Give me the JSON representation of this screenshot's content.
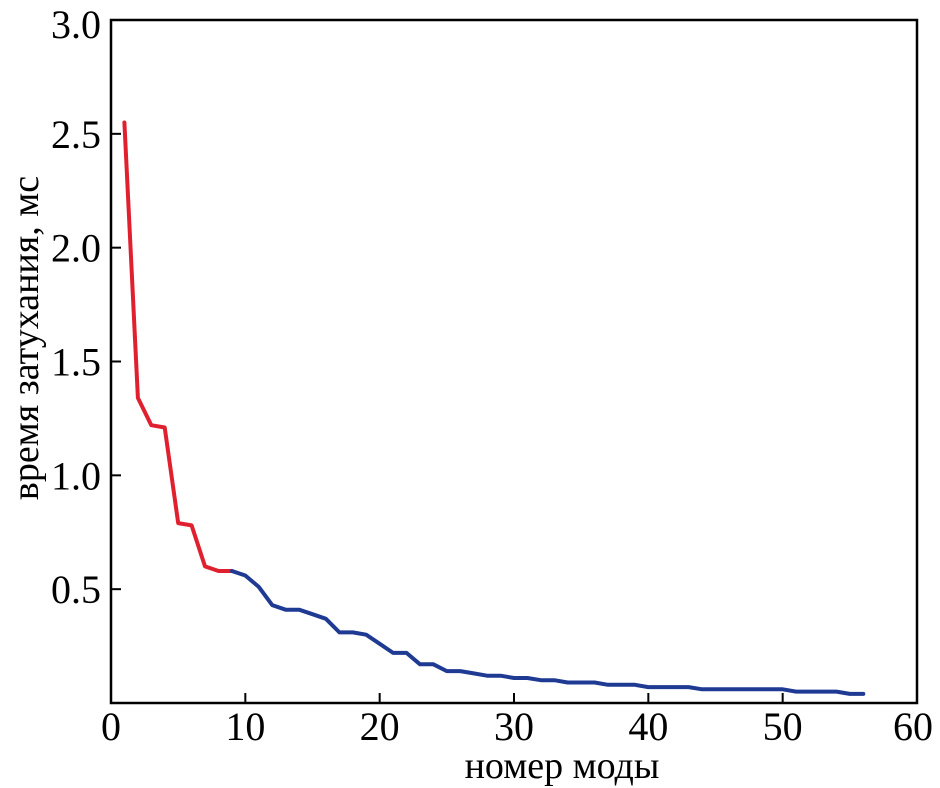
{
  "chart_data": {
    "type": "line",
    "xlabel": "номер моды",
    "ylabel": "время затухания, мс",
    "xlim": [
      0,
      60
    ],
    "ylim": [
      0,
      3.0
    ],
    "xticks": [
      0,
      10,
      20,
      30,
      40,
      50,
      60
    ],
    "yticks": [
      0.5,
      1.0,
      1.5,
      2.0,
      2.5,
      3.0
    ],
    "xtick_labels": [
      "0",
      "10",
      "20",
      "30",
      "40",
      "50",
      "60"
    ],
    "ytick_labels": [
      "0.5",
      "1.0",
      "1.5",
      "2.0",
      "2.5",
      "3.0"
    ],
    "grid": false,
    "series": [
      {
        "color": "#e0202e",
        "x": [
          1,
          2,
          3,
          4,
          5,
          6,
          7,
          8,
          9
        ],
        "y": [
          2.55,
          1.34,
          1.22,
          1.21,
          0.79,
          0.78,
          0.6,
          0.58,
          0.58
        ]
      },
      {
        "color": "#1f3a93",
        "x": [
          9,
          10,
          11,
          12,
          13,
          14,
          15,
          16,
          17,
          18,
          19,
          20,
          21,
          22,
          23,
          24,
          25,
          26,
          27,
          28,
          29,
          30,
          31,
          32,
          33,
          34,
          35,
          36,
          37,
          38,
          39,
          40,
          41,
          42,
          43,
          44,
          45,
          46,
          47,
          48,
          49,
          50,
          51,
          52,
          53,
          54,
          55,
          56
        ],
        "y": [
          0.58,
          0.56,
          0.51,
          0.43,
          0.41,
          0.41,
          0.39,
          0.37,
          0.31,
          0.31,
          0.3,
          0.26,
          0.22,
          0.22,
          0.17,
          0.17,
          0.14,
          0.14,
          0.13,
          0.12,
          0.12,
          0.11,
          0.11,
          0.1,
          0.1,
          0.09,
          0.09,
          0.09,
          0.08,
          0.08,
          0.08,
          0.07,
          0.07,
          0.07,
          0.07,
          0.06,
          0.06,
          0.06,
          0.06,
          0.06,
          0.06,
          0.06,
          0.05,
          0.05,
          0.05,
          0.05,
          0.04,
          0.04
        ]
      }
    ]
  }
}
